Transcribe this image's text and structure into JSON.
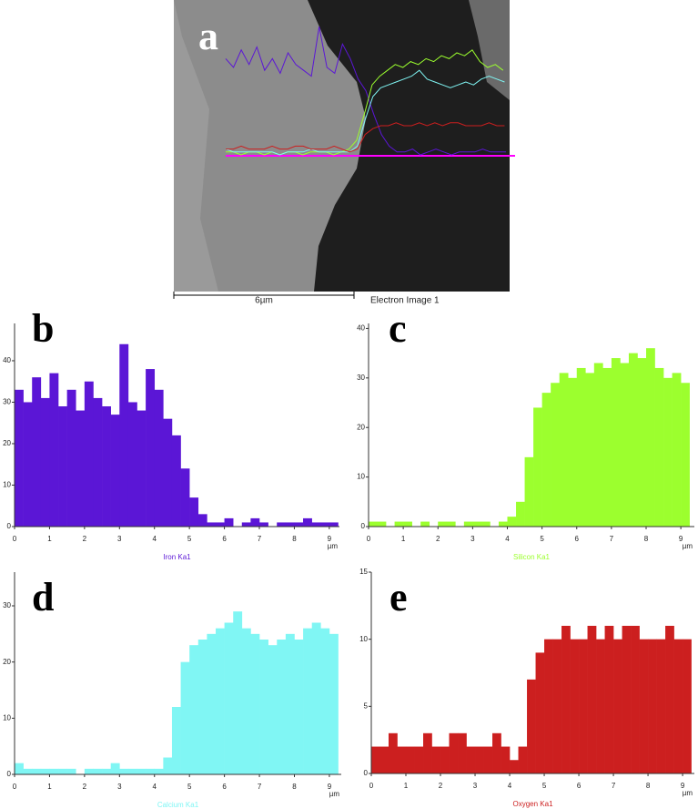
{
  "image": {
    "label": "a",
    "scale_bar": "6µm",
    "caption": "Electron Image 1"
  },
  "chart_data": [
    {
      "type": "histogram",
      "panel": "b",
      "name": "Iron Ka1",
      "color": "#5b16d6",
      "x_unit": "µm",
      "bins": [
        0,
        0.25,
        0.5,
        0.75,
        1,
        1.25,
        1.5,
        1.75,
        2,
        2.25,
        2.5,
        2.75,
        3,
        3.25,
        3.5,
        3.75,
        4,
        4.25,
        4.5,
        4.75,
        5,
        5.25,
        5.5,
        5.75,
        6,
        6.25,
        6.5,
        6.75,
        7,
        7.25,
        7.5,
        7.75,
        8,
        8.25,
        8.5,
        8.75,
        9,
        9.25
      ],
      "values": [
        33,
        30,
        36,
        31,
        37,
        29,
        33,
        28,
        35,
        31,
        29,
        27,
        44,
        30,
        28,
        38,
        33,
        26,
        22,
        14,
        7,
        3,
        1,
        1,
        2,
        0,
        1,
        2,
        1,
        0,
        1,
        1,
        1,
        2,
        1,
        1,
        1
      ],
      "xlim": [
        0,
        9.29
      ],
      "ylim": [
        0,
        49
      ],
      "xticks": [
        0,
        1,
        2,
        3,
        4,
        5,
        6,
        7,
        8,
        9
      ],
      "yticks": [
        0,
        10,
        20,
        30,
        40
      ]
    },
    {
      "type": "histogram",
      "panel": "c",
      "name": "Silicon Ka1",
      "color": "#9cff2e",
      "x_unit": "µm",
      "bins": [
        0,
        0.25,
        0.5,
        0.75,
        1,
        1.25,
        1.5,
        1.75,
        2,
        2.25,
        2.5,
        2.75,
        3,
        3.25,
        3.5,
        3.75,
        4,
        4.25,
        4.5,
        4.75,
        5,
        5.25,
        5.5,
        5.75,
        6,
        6.25,
        6.5,
        6.75,
        7,
        7.25,
        7.5,
        7.75,
        8,
        8.25,
        8.5,
        8.75,
        9,
        9.25
      ],
      "values": [
        1,
        1,
        0,
        1,
        1,
        0,
        1,
        0,
        1,
        1,
        0,
        1,
        1,
        1,
        0,
        1,
        2,
        5,
        14,
        24,
        27,
        29,
        31,
        30,
        32,
        31,
        33,
        32,
        34,
        33,
        35,
        34,
        36,
        32,
        30,
        31,
        29
      ],
      "xlim": [
        0,
        9.39
      ],
      "ylim": [
        0,
        41
      ],
      "xticks": [
        0,
        1,
        2,
        3,
        4,
        5,
        6,
        7,
        8,
        9
      ],
      "yticks": [
        0,
        10,
        20,
        30,
        40
      ]
    },
    {
      "type": "histogram",
      "panel": "d",
      "name": "Calcium Ka1",
      "color": "#80f6f4",
      "x_unit": "µm",
      "bins": [
        0,
        0.25,
        0.5,
        0.75,
        1,
        1.25,
        1.5,
        1.75,
        2,
        2.25,
        2.5,
        2.75,
        3,
        3.25,
        3.5,
        3.75,
        4,
        4.25,
        4.5,
        4.75,
        5,
        5.25,
        5.5,
        5.75,
        6,
        6.25,
        6.5,
        6.75,
        7,
        7.25,
        7.5,
        7.75,
        8,
        8.25,
        8.5,
        8.75,
        9,
        9.25
      ],
      "values": [
        2,
        1,
        1,
        1,
        1,
        1,
        1,
        0,
        1,
        1,
        1,
        2,
        1,
        1,
        1,
        1,
        1,
        3,
        12,
        20,
        23,
        24,
        25,
        26,
        27,
        29,
        26,
        25,
        24,
        23,
        24,
        25,
        24,
        26,
        27,
        26,
        25
      ],
      "xlim": [
        0,
        9.34
      ],
      "ylim": [
        0,
        36
      ],
      "xticks": [
        0,
        1,
        2,
        3,
        4,
        5,
        6,
        7,
        8,
        9
      ],
      "yticks": [
        0,
        10,
        20,
        30
      ]
    },
    {
      "type": "histogram",
      "panel": "e",
      "name": "Oxygen Ka1",
      "color": "#cc1f1f",
      "x_unit": "µm",
      "bins": [
        0,
        0.25,
        0.5,
        0.75,
        1,
        1.25,
        1.5,
        1.75,
        2,
        2.25,
        2.5,
        2.75,
        3,
        3.25,
        3.5,
        3.75,
        4,
        4.25,
        4.5,
        4.75,
        5,
        5.25,
        5.5,
        5.75,
        6,
        6.25,
        6.5,
        6.75,
        7,
        7.25,
        7.5,
        7.75,
        8,
        8.25,
        8.5,
        8.75,
        9,
        9.25
      ],
      "values": [
        2,
        2,
        3,
        2,
        2,
        2,
        3,
        2,
        2,
        3,
        3,
        2,
        2,
        2,
        3,
        2,
        1,
        2,
        7,
        9,
        10,
        10,
        11,
        10,
        10,
        11,
        10,
        11,
        10,
        11,
        11,
        10,
        10,
        10,
        11,
        10,
        10
      ],
      "xlim": [
        0,
        9.34
      ],
      "ylim": [
        0,
        15
      ],
      "xticks": [
        0,
        1,
        2,
        3,
        4,
        5,
        6,
        7,
        8,
        9
      ],
      "yticks": [
        0,
        5,
        10,
        15
      ]
    }
  ]
}
